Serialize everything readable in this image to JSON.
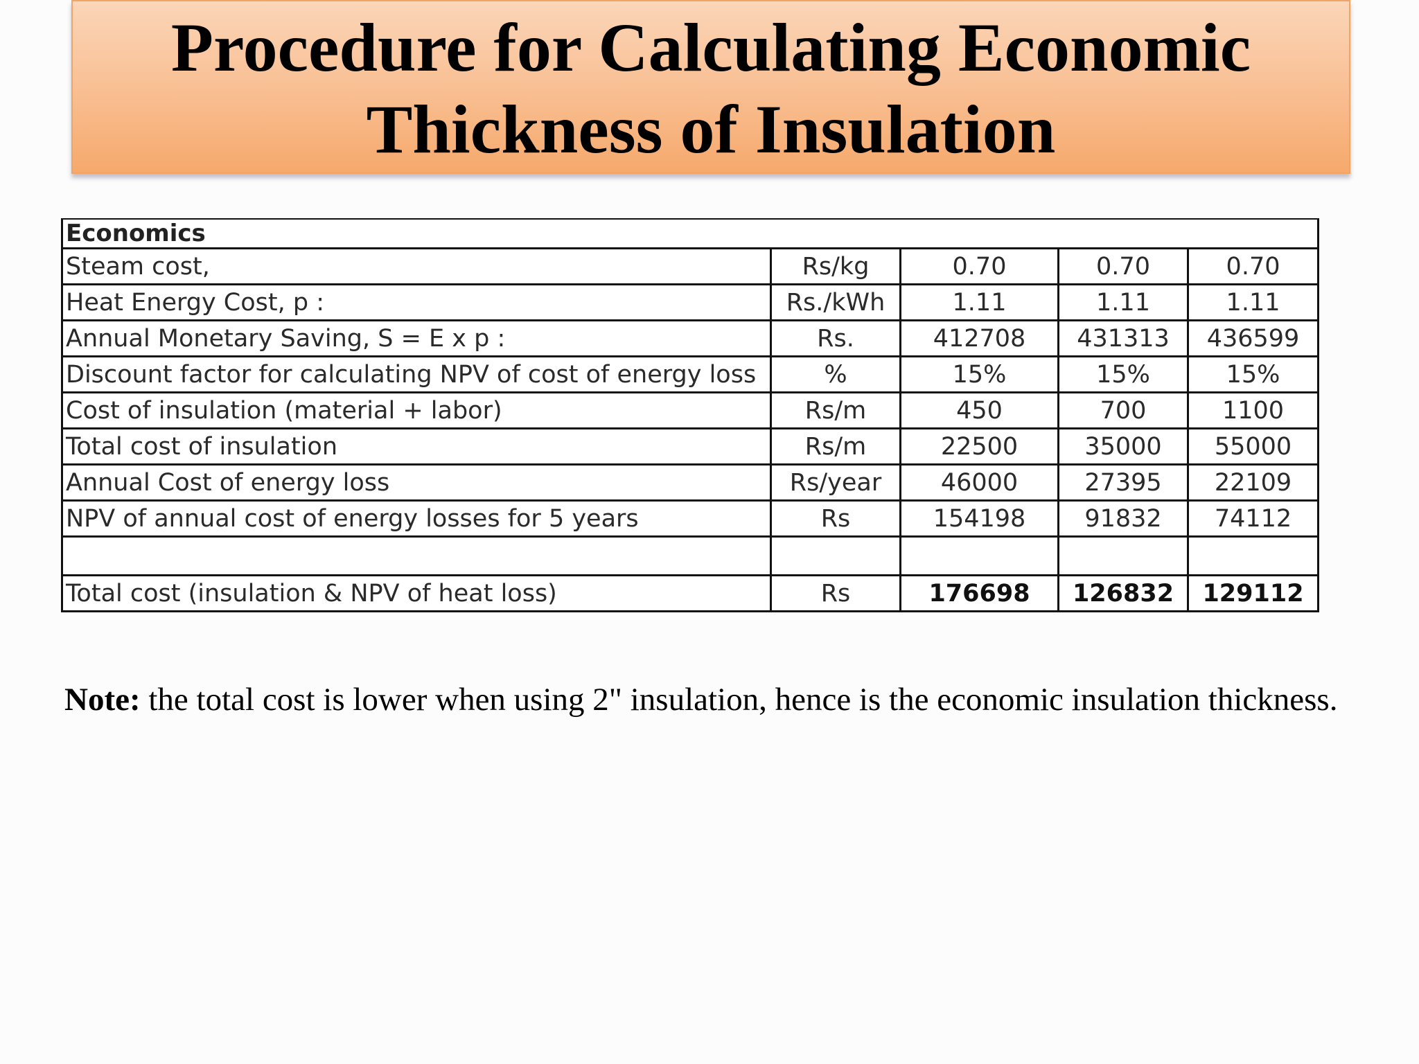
{
  "title": {
    "line1": "Procedure for Calculating Economic",
    "line2": "Thickness of Insulation"
  },
  "table": {
    "header": "Economics",
    "rows": [
      {
        "label": "Steam cost,",
        "unit": "Rs/kg",
        "values": [
          "0.70",
          "0.70",
          "0.70"
        ]
      },
      {
        "label": "Heat Energy Cost, p :",
        "unit": "Rs./kWh",
        "values": [
          "1.11",
          "1.11",
          "1.11"
        ]
      },
      {
        "label": "Annual Monetary Saving, S = E x p :",
        "unit": "Rs.",
        "values": [
          "412708",
          "431313",
          "436599"
        ]
      },
      {
        "label": "Discount factor for calculating NPV of cost of energy loss",
        "unit": "%",
        "values": [
          "15%",
          "15%",
          "15%"
        ]
      },
      {
        "label": "Cost of insulation (material + labor)",
        "unit": "Rs/m",
        "values": [
          "450",
          "700",
          "1100"
        ]
      },
      {
        "label": "Total cost of insulation",
        "unit": "Rs/m",
        "values": [
          "22500",
          "35000",
          "55000"
        ]
      },
      {
        "label": "Annual Cost of energy loss",
        "unit": "Rs/year",
        "values": [
          "46000",
          "27395",
          "22109"
        ]
      },
      {
        "label": "NPV of annual cost of energy losses for 5 years",
        "unit": "Rs",
        "values": [
          "154198",
          "91832",
          "74112"
        ]
      },
      {
        "label": "",
        "unit": "",
        "values": [
          "",
          "",
          ""
        ]
      },
      {
        "label": "Total cost (insulation & NPV of heat loss)",
        "unit": "Rs",
        "values": [
          "176698",
          "126832",
          "129112"
        ]
      }
    ]
  },
  "note": {
    "prefix": "Note:",
    "text": " the total cost is lower when using 2\" insulation, hence is the economic insulation thickness."
  }
}
